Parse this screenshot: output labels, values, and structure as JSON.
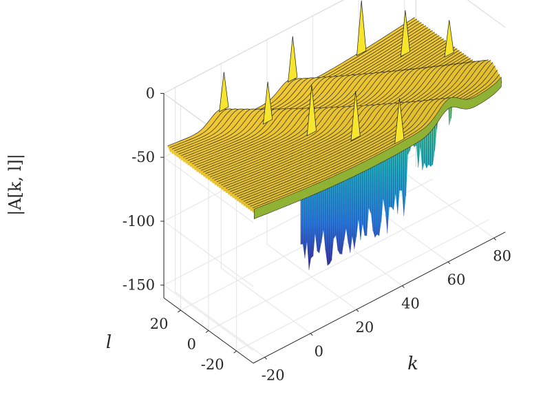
{
  "chart_data": {
    "type": "surface",
    "title": "",
    "xlabel": "k",
    "ylabel": "l",
    "zlabel": "|A[k, l]|",
    "xlim": [
      -25,
      85
    ],
    "ylim": [
      -32,
      32
    ],
    "zlim": [
      -160,
      0
    ],
    "x_ticks": [
      "-20",
      "0",
      "20",
      "40",
      "60",
      "80"
    ],
    "y_ticks": [
      "-20",
      "0",
      "20"
    ],
    "z_ticks": [
      "0",
      "-50",
      "-100",
      "-150"
    ],
    "grid": true,
    "colormap": [
      "#3e26a8",
      "#2e87f4",
      "#1ab2cf",
      "#55c68f",
      "#c3c52b",
      "#f9d528",
      "#f9fb15"
    ],
    "series": [
      {
        "description_of_surface": "log-magnitude ambiguity surface",
        "baseline_level": -45,
        "floor_level": -155,
        "peaks": [
          {
            "k": 0,
            "l": 30,
            "z": -5
          },
          {
            "k": 10,
            "l": 15,
            "z": -10
          },
          {
            "k": 20,
            "l": 0,
            "z": -10
          },
          {
            "k": 30,
            "l": -15,
            "z": -12
          },
          {
            "k": 40,
            "l": -30,
            "z": -15
          },
          {
            "k": 30,
            "l": 30,
            "z": -5
          },
          {
            "k": 60,
            "l": 30,
            "z": -5
          },
          {
            "k": 70,
            "l": 15,
            "z": -10
          },
          {
            "k": 80,
            "l": 0,
            "z": -15
          }
        ]
      }
    ]
  }
}
